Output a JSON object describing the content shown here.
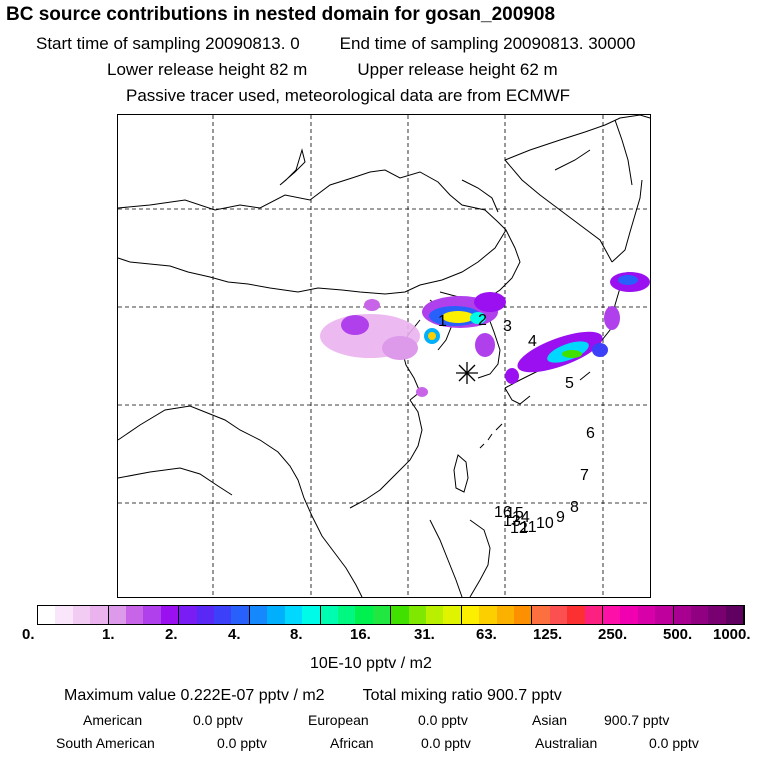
{
  "header": {
    "title": "BC  source contributions in nested domain for gosan_200908",
    "start_label": "Start time of sampling 20090813.     0",
    "end_label": "End time of sampling 20090813. 30000",
    "lower_label": "Lower release height   82 m",
    "upper_label": "Upper release height   62 m",
    "tracer_note": "Passive tracer used, meteorological data are from ECMWF"
  },
  "map": {
    "site_marker": "receptor-star",
    "trajectory_labels": [
      "1",
      "2",
      "3",
      "4",
      "5",
      "6",
      "7",
      "8",
      "9",
      "10",
      "11",
      "12",
      "13",
      "14",
      "15",
      "16"
    ]
  },
  "colorbar": {
    "tick_labels": [
      "0.",
      "1.",
      "2.",
      "4.",
      "8.",
      "16.",
      "31.",
      "63.",
      "125.",
      "250.",
      "500.",
      "1000."
    ],
    "colors": [
      "#ffffff",
      "#fae6fa",
      "#f3ccf3",
      "#eab3ee",
      "#dd99ea",
      "#c864e8",
      "#b040ec",
      "#9a10f0",
      "#7a1cf4",
      "#5a28f4",
      "#3c40f8",
      "#2860fc",
      "#1488fc",
      "#00b0fc",
      "#00d8ff",
      "#00fce8",
      "#00fcb0",
      "#00f880",
      "#00f050",
      "#20e840",
      "#40e000",
      "#80e800",
      "#b8f000",
      "#e0f400",
      "#fcf000",
      "#fcd000",
      "#fcb000",
      "#fc9000",
      "#fc7040",
      "#fc5050",
      "#fc3030",
      "#fc2080",
      "#fc10a8",
      "#f000b0",
      "#d800a8",
      "#c0009c",
      "#a80090",
      "#900080",
      "#780070",
      "#600060"
    ],
    "unit": "10E-10 pptv / m2"
  },
  "summary": {
    "max_value": "Maximum value  0.222E-07 pptv / m2",
    "total_mixing": "Total mixing ratio     900.7 pptv",
    "regions": [
      {
        "name": "American",
        "value": "0.0 pptv"
      },
      {
        "name": "European",
        "value": "0.0 pptv"
      },
      {
        "name": "Asian",
        "value": "900.7 pptv"
      },
      {
        "name": "South American",
        "value": "0.0 pptv"
      },
      {
        "name": "African",
        "value": "0.0 pptv"
      },
      {
        "name": "Australian",
        "value": "0.0 pptv"
      }
    ]
  }
}
